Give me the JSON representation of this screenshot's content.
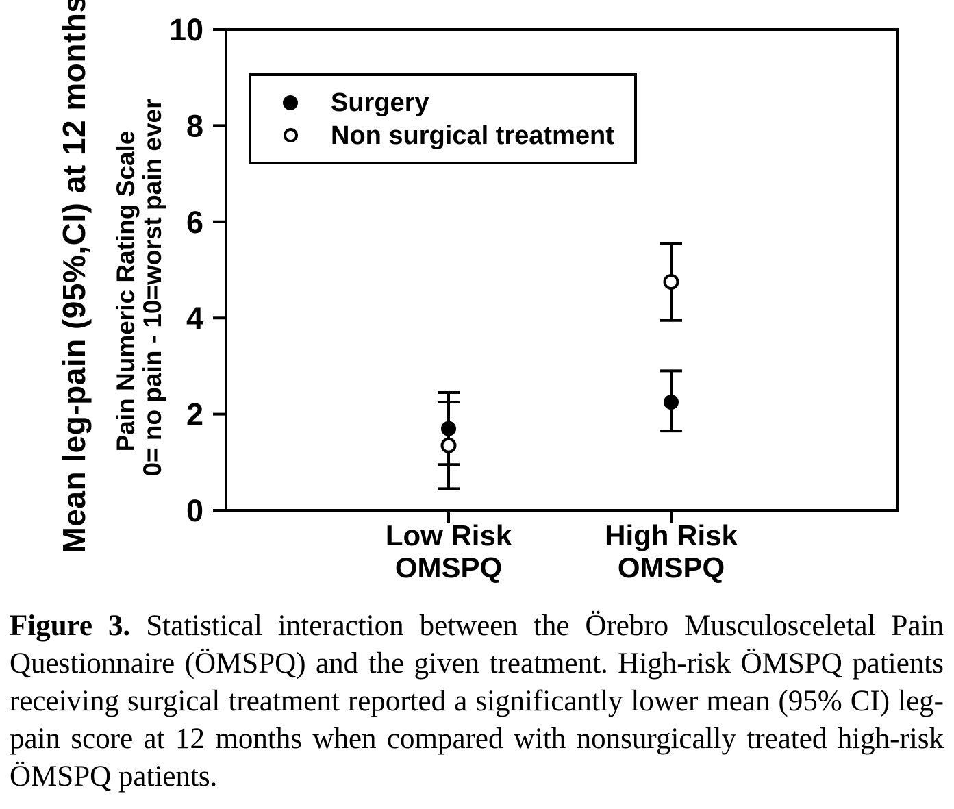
{
  "figure": {
    "y_axis_title_main": "Mean leg-pain (95%,CI) at 12 months",
    "y_axis_title_sub1": "Pain Numeric Rating Scale",
    "y_axis_title_sub2": "0= no pain - 10=worst pain ever"
  },
  "legend": {
    "items": [
      {
        "label": "Surgery",
        "marker": "filled-circle"
      },
      {
        "label": "Non surgical treatment",
        "marker": "open-circle"
      }
    ]
  },
  "chart_data": {
    "type": "scatter",
    "title": "",
    "categories": [
      {
        "line1": "Low Risk",
        "line2": "OMSPQ"
      },
      {
        "line1": "High Risk",
        "line2": "OMSPQ"
      }
    ],
    "series": [
      {
        "name": "Surgery",
        "marker": "filled-circle",
        "values": [
          1.7,
          2.25
        ],
        "ci_low": [
          0.95,
          1.65
        ],
        "ci_high": [
          2.45,
          2.9
        ]
      },
      {
        "name": "Non surgical treatment",
        "marker": "open-circle",
        "values": [
          1.35,
          4.75
        ],
        "ci_low": [
          0.45,
          3.95
        ],
        "ci_high": [
          2.25,
          5.55
        ]
      }
    ],
    "xlabel": "",
    "ylabel": "Mean leg-pain (95%,CI) at 12 months — Pain Numeric Rating Scale — 0= no pain - 10=worst pain ever",
    "ylim": [
      0,
      10
    ],
    "yticks": [
      0,
      2,
      4,
      6,
      8,
      10
    ],
    "grid": false,
    "legend_position": "top-left-inside",
    "error_bars": "95% CI"
  },
  "caption": {
    "label": "Figure 3.",
    "text": "Statistical interaction between the Örebro Musculosceletal Pain Questionnaire (ÖMSPQ) and the given treatment. High-risk ÖMSPQ patients receiving surgical treatment reported a significantly lower mean (95% CI) leg-pain score at 12 months when compared with nonsurgically treated high-risk ÖMSPQ patients."
  }
}
